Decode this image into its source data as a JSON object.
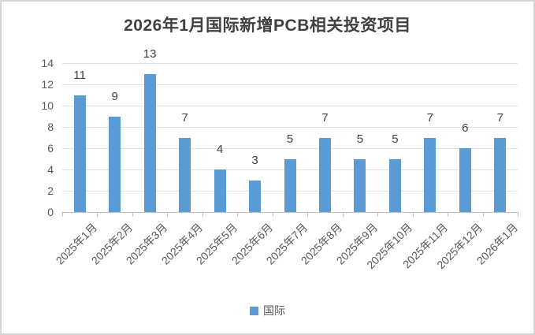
{
  "frame": {
    "border_color": "#d5d5d5",
    "background": "#ffffff"
  },
  "chart_data": {
    "type": "bar",
    "title": "2026年1月国际新增PCB相关投资项目",
    "categories": [
      "2025年1月",
      "2025年2月",
      "2025年3月",
      "2025年4月",
      "2025年5月",
      "2025年6月",
      "2025年7月",
      "2025年8月",
      "2025年9月",
      "2025年10月",
      "2025年11月",
      "2025年12月",
      "2026年1月"
    ],
    "series": [
      {
        "name": "国际",
        "color": "#5B9BD5",
        "values": [
          11,
          9,
          13,
          7,
          4,
          3,
          5,
          7,
          5,
          5,
          7,
          6,
          7
        ]
      }
    ],
    "data_labels": [
      11,
      9,
      13,
      7,
      4,
      3,
      5,
      7,
      5,
      5,
      7,
      6,
      7
    ],
    "xlabel": "",
    "ylabel": "",
    "ylim": [
      0,
      14
    ],
    "ytick_step": 2,
    "ytick_labels": [
      "0",
      "2",
      "4",
      "6",
      "8",
      "10",
      "12",
      "14"
    ],
    "grid": true,
    "legend_position": "bottom",
    "colors": {
      "bar": "#5B9BD5",
      "title_text": "#404040",
      "axis_text": "#595959",
      "value_label_text": "#404040",
      "gridline": "#e2e2e2",
      "axis_line": "#bfbfbf"
    }
  }
}
